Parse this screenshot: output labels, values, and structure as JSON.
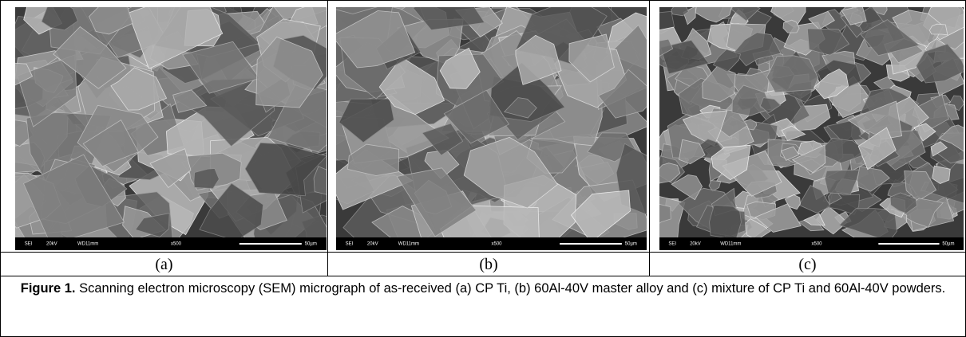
{
  "panels": [
    {
      "label": "(a)",
      "info_bar": [
        "SEI",
        "20kV",
        "WD11mm",
        "x500",
        "50µm"
      ]
    },
    {
      "label": "(b)",
      "info_bar": [
        "SEI",
        "20kV",
        "WD11mm",
        "x500",
        "50µm"
      ]
    },
    {
      "label": "(c)",
      "info_bar": [
        "SEI",
        "20kV",
        "WD11mm",
        "x500",
        "50µm"
      ]
    }
  ],
  "caption": {
    "label": "Figure 1.",
    "text": "Scanning electron microscopy (SEM) micrograph of as-received (a) CP Ti, (b) 60Al-40V master alloy and (c) mixture of CP Ti and 60Al-40V powders."
  }
}
